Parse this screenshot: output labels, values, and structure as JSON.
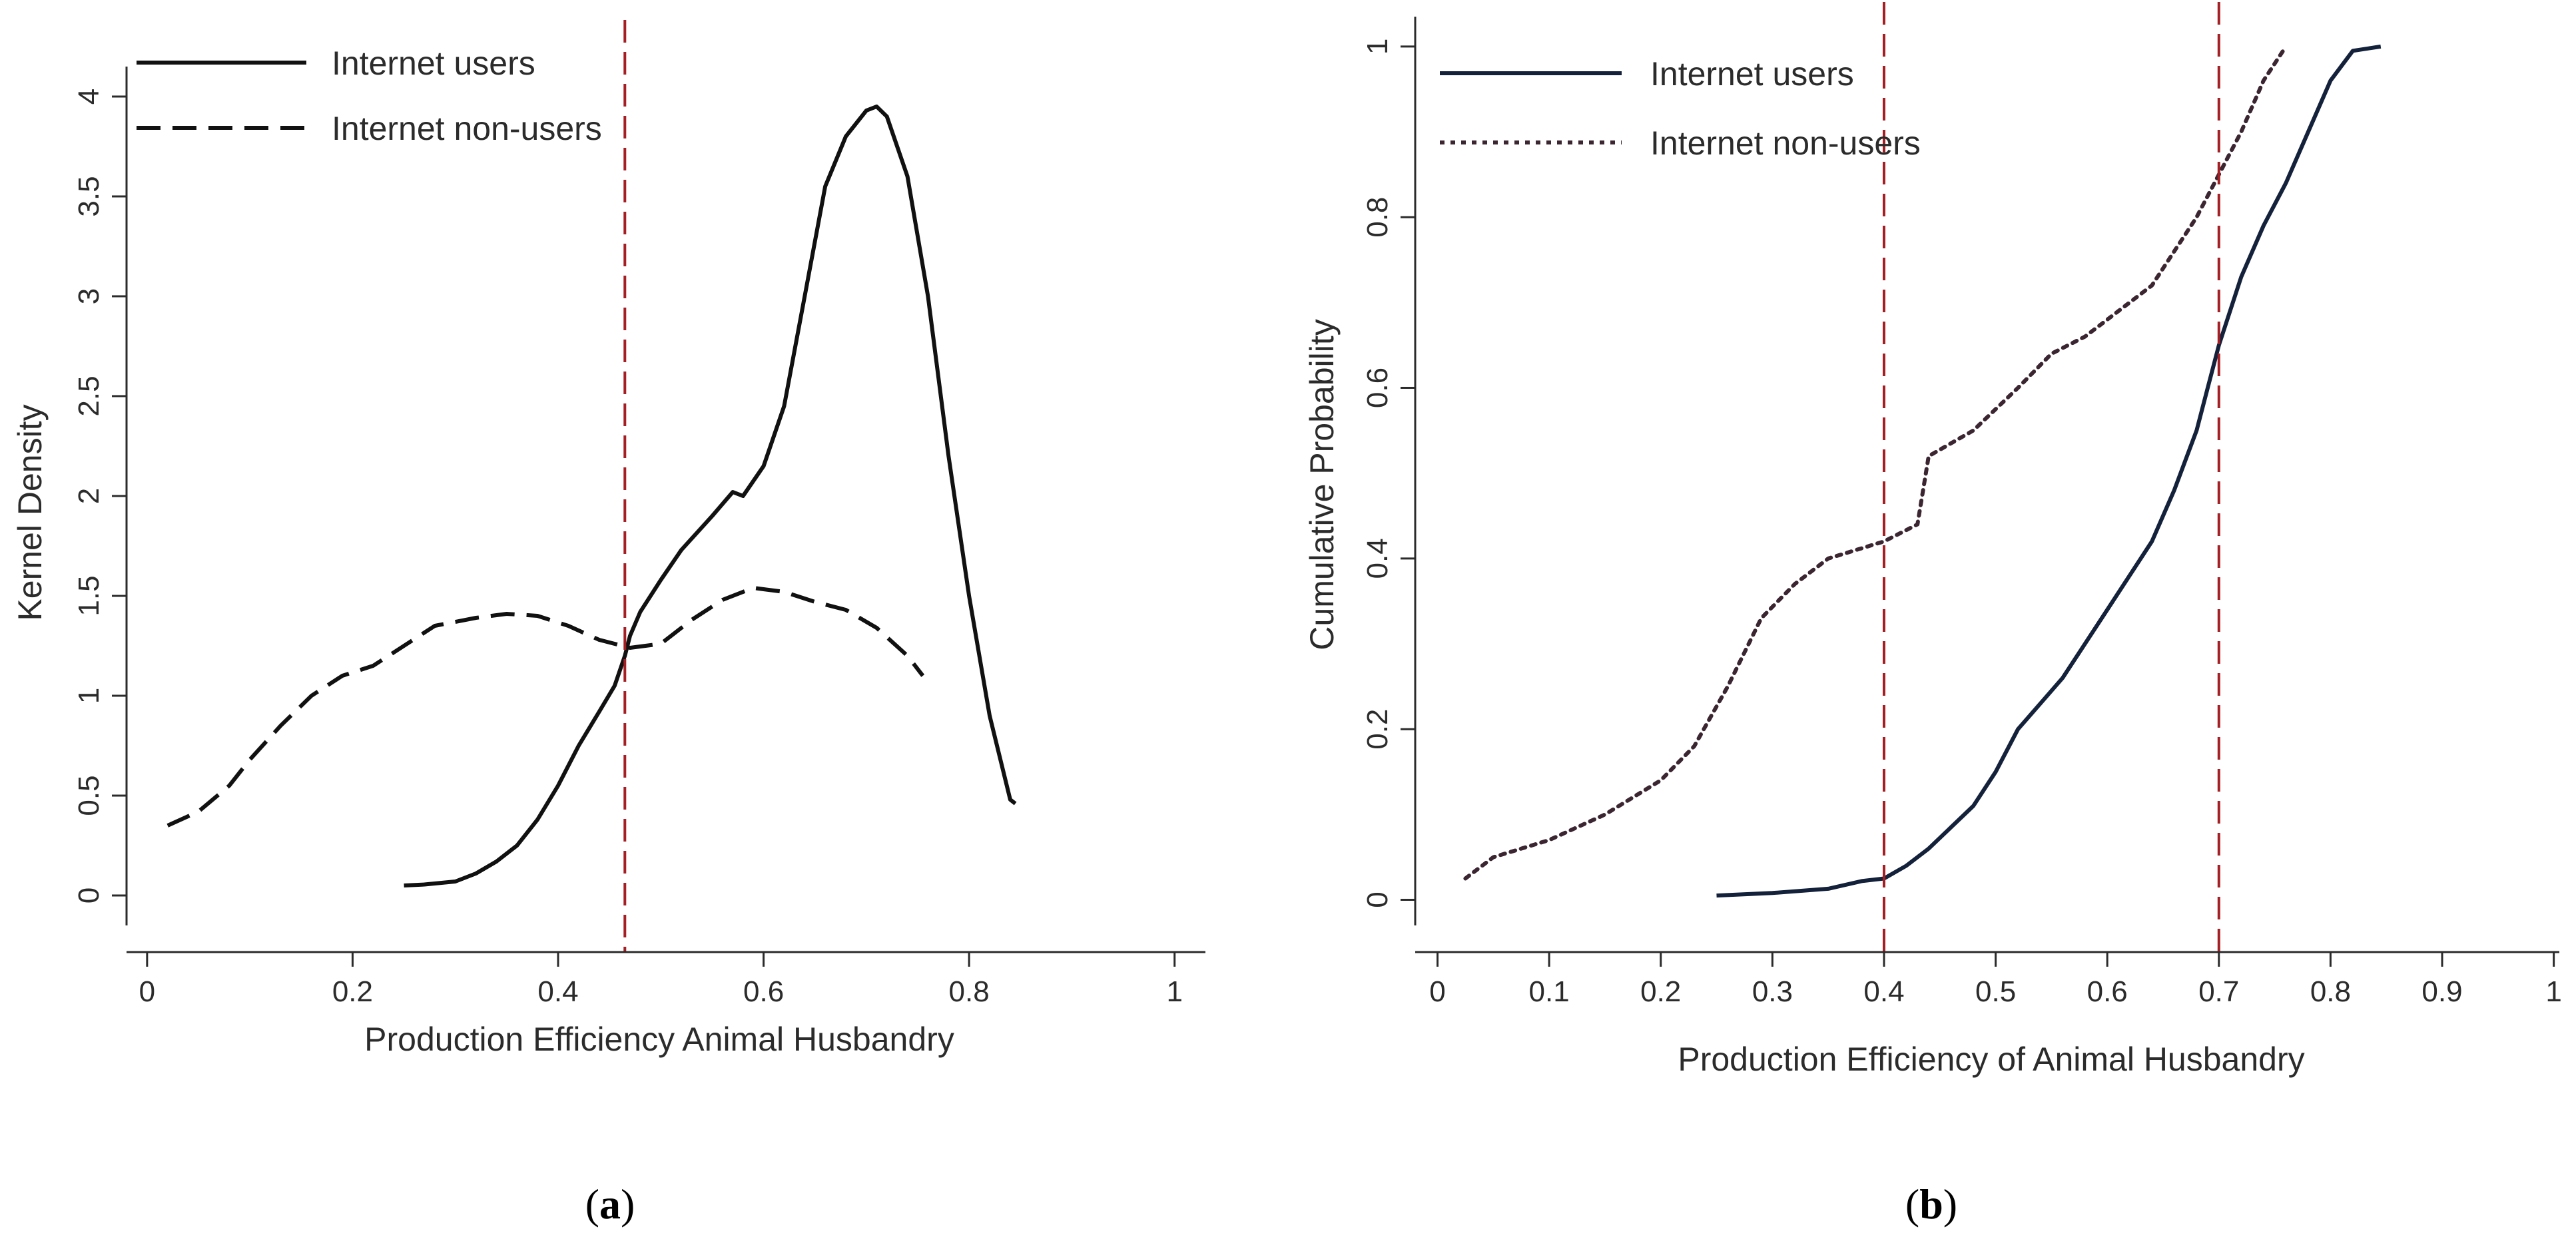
{
  "chart_data": [
    {
      "id": "a",
      "type": "line",
      "caption_letter": "a",
      "title": "",
      "xlabel": "Production Efficiency Animal Husbandry",
      "ylabel": "Kernel Density",
      "xlim": [
        -0.02,
        1.03
      ],
      "ylim": [
        -0.15,
        4.15
      ],
      "xticks": [
        0,
        0.2,
        0.4,
        0.6,
        0.8,
        1
      ],
      "xtick_labels": [
        "0",
        "0.2",
        "0.4",
        "0.6",
        "0.8",
        "1"
      ],
      "yticks": [
        0,
        0.5,
        1,
        1.5,
        2,
        2.5,
        3,
        3.5,
        4
      ],
      "ytick_labels": [
        "0",
        "0.5",
        "1",
        "1.5",
        "2",
        "2.5",
        "3",
        "3.5",
        "4"
      ],
      "legend_position": "top-left",
      "reference_lines": [
        {
          "x": 0.465,
          "color": "#a31f24",
          "style": "dashed"
        }
      ],
      "series": [
        {
          "name": "Internet users",
          "style": "solid",
          "color": "#111111",
          "points": [
            [
              0.25,
              0.05
            ],
            [
              0.27,
              0.055
            ],
            [
              0.3,
              0.07
            ],
            [
              0.32,
              0.11
            ],
            [
              0.34,
              0.17
            ],
            [
              0.36,
              0.25
            ],
            [
              0.38,
              0.38
            ],
            [
              0.4,
              0.55
            ],
            [
              0.42,
              0.75
            ],
            [
              0.44,
              0.92
            ],
            [
              0.455,
              1.05
            ],
            [
              0.465,
              1.2
            ],
            [
              0.47,
              1.3
            ],
            [
              0.48,
              1.42
            ],
            [
              0.5,
              1.58
            ],
            [
              0.52,
              1.73
            ],
            [
              0.55,
              1.9
            ],
            [
              0.57,
              2.02
            ],
            [
              0.58,
              2.0
            ],
            [
              0.6,
              2.15
            ],
            [
              0.62,
              2.45
            ],
            [
              0.64,
              3.0
            ],
            [
              0.66,
              3.55
            ],
            [
              0.68,
              3.8
            ],
            [
              0.7,
              3.93
            ],
            [
              0.71,
              3.95
            ],
            [
              0.72,
              3.9
            ],
            [
              0.74,
              3.6
            ],
            [
              0.76,
              3.0
            ],
            [
              0.78,
              2.2
            ],
            [
              0.8,
              1.5
            ],
            [
              0.82,
              0.9
            ],
            [
              0.84,
              0.48
            ],
            [
              0.845,
              0.46
            ]
          ]
        },
        {
          "name": "Internet non-users",
          "style": "dashed",
          "color": "#111111",
          "points": [
            [
              0.02,
              0.35
            ],
            [
              0.05,
              0.42
            ],
            [
              0.08,
              0.55
            ],
            [
              0.1,
              0.68
            ],
            [
              0.13,
              0.85
            ],
            [
              0.16,
              1.0
            ],
            [
              0.19,
              1.1
            ],
            [
              0.22,
              1.15
            ],
            [
              0.25,
              1.25
            ],
            [
              0.28,
              1.35
            ],
            [
              0.32,
              1.39
            ],
            [
              0.35,
              1.41
            ],
            [
              0.38,
              1.4
            ],
            [
              0.41,
              1.35
            ],
            [
              0.44,
              1.28
            ],
            [
              0.47,
              1.24
            ],
            [
              0.5,
              1.26
            ],
            [
              0.53,
              1.38
            ],
            [
              0.56,
              1.48
            ],
            [
              0.59,
              1.54
            ],
            [
              0.62,
              1.52
            ],
            [
              0.65,
              1.47
            ],
            [
              0.68,
              1.43
            ],
            [
              0.71,
              1.34
            ],
            [
              0.74,
              1.2
            ],
            [
              0.755,
              1.1
            ]
          ]
        }
      ]
    },
    {
      "id": "b",
      "type": "line",
      "caption_letter": "b",
      "title": "",
      "xlabel": "Production Efficiency of Animal Husbandry",
      "ylabel": "Cumulative Probability",
      "xlim": [
        -0.02,
        1.005
      ],
      "ylim": [
        -0.03,
        1.035
      ],
      "xticks": [
        0,
        0.1,
        0.2,
        0.3,
        0.4,
        0.5,
        0.6,
        0.7,
        0.8,
        0.9,
        1
      ],
      "xtick_labels": [
        "0",
        "0.1",
        "0.2",
        "0.3",
        "0.4",
        "0.5",
        "0.6",
        "0.7",
        "0.8",
        "0.9",
        "1"
      ],
      "yticks": [
        0,
        0.2,
        0.4,
        0.6,
        0.8,
        1
      ],
      "ytick_labels": [
        "0",
        "0.2",
        "0.4",
        "0.6",
        "0.8",
        "1"
      ],
      "legend_position": "top-left",
      "reference_lines": [
        {
          "x": 0.4,
          "color": "#a31f24",
          "style": "dashed"
        },
        {
          "x": 0.7,
          "color": "#a31f24",
          "style": "dashed"
        }
      ],
      "series": [
        {
          "name": "Internet users",
          "style": "solid",
          "color": "#14213a",
          "points": [
            [
              0.25,
              0.005
            ],
            [
              0.3,
              0.008
            ],
            [
              0.35,
              0.013
            ],
            [
              0.38,
              0.022
            ],
            [
              0.4,
              0.025
            ],
            [
              0.42,
              0.04
            ],
            [
              0.44,
              0.06
            ],
            [
              0.46,
              0.085
            ],
            [
              0.48,
              0.11
            ],
            [
              0.5,
              0.15
            ],
            [
              0.52,
              0.2
            ],
            [
              0.54,
              0.23
            ],
            [
              0.56,
              0.26
            ],
            [
              0.58,
              0.3
            ],
            [
              0.6,
              0.34
            ],
            [
              0.62,
              0.38
            ],
            [
              0.64,
              0.42
            ],
            [
              0.66,
              0.48
            ],
            [
              0.68,
              0.55
            ],
            [
              0.69,
              0.6
            ],
            [
              0.7,
              0.65
            ],
            [
              0.72,
              0.73
            ],
            [
              0.74,
              0.79
            ],
            [
              0.76,
              0.84
            ],
            [
              0.78,
              0.9
            ],
            [
              0.8,
              0.96
            ],
            [
              0.82,
              0.995
            ],
            [
              0.845,
              1.0
            ]
          ]
        },
        {
          "name": "Internet non-users",
          "style": "dotted",
          "color": "#3a2530",
          "points": [
            [
              0.025,
              0.025
            ],
            [
              0.05,
              0.05
            ],
            [
              0.1,
              0.07
            ],
            [
              0.15,
              0.1
            ],
            [
              0.2,
              0.14
            ],
            [
              0.23,
              0.18
            ],
            [
              0.26,
              0.25
            ],
            [
              0.29,
              0.33
            ],
            [
              0.32,
              0.37
            ],
            [
              0.35,
              0.4
            ],
            [
              0.4,
              0.42
            ],
            [
              0.43,
              0.44
            ],
            [
              0.44,
              0.52
            ],
            [
              0.48,
              0.55
            ],
            [
              0.52,
              0.6
            ],
            [
              0.55,
              0.64
            ],
            [
              0.58,
              0.66
            ],
            [
              0.62,
              0.7
            ],
            [
              0.64,
              0.72
            ],
            [
              0.66,
              0.76
            ],
            [
              0.68,
              0.8
            ],
            [
              0.7,
              0.85
            ],
            [
              0.72,
              0.9
            ],
            [
              0.74,
              0.96
            ],
            [
              0.76,
              1.0
            ]
          ]
        }
      ]
    }
  ]
}
